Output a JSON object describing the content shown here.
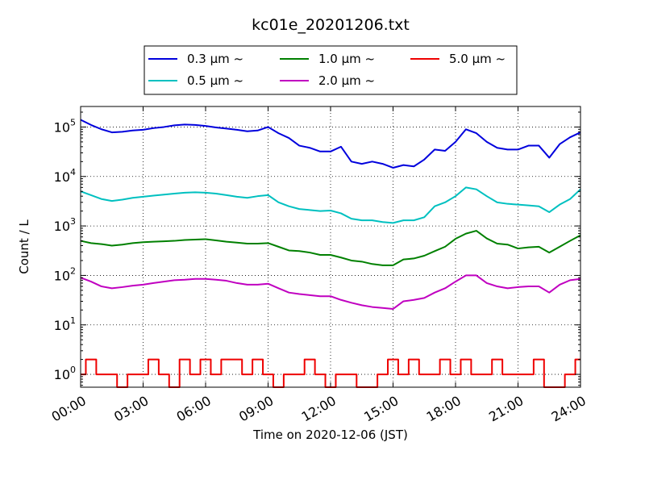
{
  "chart_data": {
    "type": "line",
    "title": "kc01e_20201206.txt",
    "xlabel": "Time on 2020-12-06 (JST)",
    "ylabel": "Count / L",
    "xlim": [
      "2020-12-06 00:00",
      "2020-12-07 00:00"
    ],
    "xticks": [
      "00:00",
      "03:00",
      "06:00",
      "09:00",
      "12:00",
      "15:00",
      "18:00",
      "21:00",
      "24:00"
    ],
    "yscale": "log",
    "ylim": [
      0.55,
      260000
    ],
    "yticks": [
      {
        "value": 1,
        "base": "10",
        "exp": "0"
      },
      {
        "value": 10,
        "base": "10",
        "exp": "1"
      },
      {
        "value": 100,
        "base": "10",
        "exp": "2"
      },
      {
        "value": 1000,
        "base": "10",
        "exp": "3"
      },
      {
        "value": 10000,
        "base": "10",
        "exp": "4"
      },
      {
        "value": 100000,
        "base": "10",
        "exp": "5"
      }
    ],
    "grid": true,
    "legend_position": "top-center",
    "x": [
      "00:00",
      "00:30",
      "01:00",
      "01:30",
      "02:00",
      "02:30",
      "03:00",
      "03:30",
      "04:00",
      "04:30",
      "05:00",
      "05:30",
      "06:00",
      "06:30",
      "07:00",
      "07:30",
      "08:00",
      "08:30",
      "09:00",
      "09:30",
      "10:00",
      "10:30",
      "11:00",
      "11:30",
      "12:00",
      "12:30",
      "13:00",
      "13:30",
      "14:00",
      "14:30",
      "15:00",
      "15:30",
      "16:00",
      "16:30",
      "17:00",
      "17:30",
      "18:00",
      "18:30",
      "19:00",
      "19:30",
      "20:00",
      "20:30",
      "21:00",
      "21:30",
      "22:00",
      "22:30",
      "23:00",
      "23:30",
      "24:00"
    ],
    "series": [
      {
        "name": "0.3 μm ~",
        "color": "#0000dd",
        "values": [
          140000,
          110000,
          90000,
          78000,
          80000,
          85000,
          88000,
          95000,
          100000,
          108000,
          112000,
          110000,
          105000,
          98000,
          93000,
          88000,
          82000,
          85000,
          100000,
          75000,
          60000,
          42000,
          38000,
          32000,
          32000,
          40000,
          20000,
          18000,
          20000,
          18000,
          15000,
          17000,
          16000,
          22000,
          35000,
          33000,
          50000,
          90000,
          75000,
          50000,
          38000,
          35000,
          35000,
          42000,
          42000,
          24000,
          45000,
          62000,
          78000
        ]
      },
      {
        "name": "0.5 μm ~",
        "color": "#00c0c0",
        "values": [
          5000,
          4200,
          3500,
          3200,
          3400,
          3700,
          3900,
          4100,
          4300,
          4500,
          4700,
          4800,
          4700,
          4500,
          4200,
          3900,
          3700,
          4000,
          4200,
          3000,
          2500,
          2200,
          2100,
          2000,
          2050,
          1800,
          1400,
          1300,
          1300,
          1200,
          1150,
          1300,
          1300,
          1500,
          2500,
          3000,
          4000,
          6000,
          5500,
          4000,
          3000,
          2800,
          2700,
          2600,
          2500,
          1900,
          2700,
          3500,
          5500
        ]
      },
      {
        "name": "1.0 μm ~",
        "color": "#008000",
        "values": [
          500,
          450,
          430,
          400,
          420,
          450,
          470,
          480,
          490,
          500,
          520,
          530,
          540,
          510,
          480,
          460,
          440,
          440,
          450,
          380,
          320,
          310,
          290,
          260,
          260,
          230,
          200,
          190,
          170,
          160,
          160,
          210,
          220,
          250,
          310,
          380,
          550,
          700,
          800,
          560,
          440,
          420,
          350,
          370,
          380,
          290,
          380,
          500,
          650
        ]
      },
      {
        "name": "2.0 μm ~",
        "color": "#c000c0",
        "values": [
          90,
          75,
          60,
          55,
          58,
          62,
          65,
          70,
          75,
          80,
          82,
          85,
          85,
          82,
          78,
          70,
          65,
          65,
          68,
          55,
          45,
          42,
          40,
          38,
          38,
          32,
          28,
          25,
          23,
          22,
          21,
          30,
          32,
          35,
          45,
          55,
          75,
          100,
          100,
          70,
          60,
          55,
          58,
          60,
          60,
          45,
          65,
          80,
          85
        ]
      },
      {
        "name": "5.0 μm ~",
        "color": "#ee0000",
        "values": [
          1,
          2,
          1,
          1,
          0.5,
          1,
          1,
          2,
          1,
          0.5,
          2,
          1,
          2,
          1,
          2,
          2,
          1,
          2,
          1,
          0.5,
          1,
          1,
          2,
          1,
          0.5,
          1,
          1,
          0.5,
          0.5,
          1,
          2,
          1,
          2,
          1,
          1,
          2,
          1,
          2,
          1,
          1,
          2,
          1,
          1,
          1,
          2,
          0.5,
          0.5,
          1,
          2
        ]
      }
    ]
  }
}
